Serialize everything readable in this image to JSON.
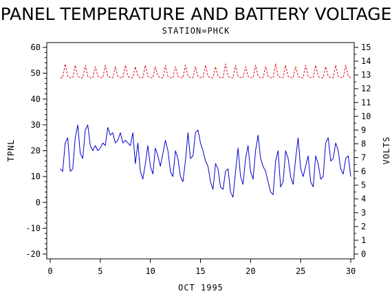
{
  "chart_data": {
    "type": "line",
    "title": "PANEL TEMPERATURE AND BATTERY VOLTAGE",
    "subtitle": "STATION=PHCK",
    "xlabel": "OCT 1995",
    "ylabel": "TPNL",
    "y2label": "VOLTS",
    "xlim": [
      0,
      30
    ],
    "ylim": [
      -20,
      60
    ],
    "y2lim": [
      0,
      15
    ],
    "x_ticks": [
      0,
      5,
      10,
      15,
      20,
      25,
      30
    ],
    "y_ticks": [
      -20,
      -10,
      0,
      10,
      20,
      30,
      40,
      50,
      60
    ],
    "y2_ticks": [
      0,
      1,
      2,
      3,
      4,
      5,
      6,
      7,
      8,
      9,
      10,
      11,
      12,
      13,
      14,
      15
    ],
    "grid": false,
    "legend": "none",
    "series": [
      {
        "axis": "left",
        "style": "solid",
        "color": "#0000cc",
        "points": [
          [
            1.0,
            13
          ],
          [
            1.25,
            12
          ],
          [
            1.5,
            23
          ],
          [
            1.75,
            25
          ],
          [
            2.0,
            12
          ],
          [
            2.25,
            13
          ],
          [
            2.5,
            25
          ],
          [
            2.75,
            30
          ],
          [
            3.0,
            19
          ],
          [
            3.25,
            17
          ],
          [
            3.5,
            28
          ],
          [
            3.75,
            30
          ],
          [
            4.0,
            22
          ],
          [
            4.25,
            20
          ],
          [
            4.5,
            22
          ],
          [
            4.75,
            20
          ],
          [
            5.0,
            21
          ],
          [
            5.25,
            23
          ],
          [
            5.5,
            22
          ],
          [
            5.75,
            29
          ],
          [
            6.0,
            26
          ],
          [
            6.25,
            27
          ],
          [
            6.5,
            23
          ],
          [
            6.75,
            24
          ],
          [
            7.0,
            27
          ],
          [
            7.25,
            23
          ],
          [
            7.5,
            24
          ],
          [
            7.75,
            23
          ],
          [
            8.0,
            22
          ],
          [
            8.25,
            27
          ],
          [
            8.5,
            15
          ],
          [
            8.75,
            23
          ],
          [
            9.0,
            12
          ],
          [
            9.25,
            9
          ],
          [
            9.5,
            15
          ],
          [
            9.75,
            22
          ],
          [
            10.0,
            14
          ],
          [
            10.25,
            11
          ],
          [
            10.5,
            21
          ],
          [
            10.75,
            18
          ],
          [
            11.0,
            14
          ],
          [
            11.25,
            19
          ],
          [
            11.5,
            24
          ],
          [
            11.75,
            20
          ],
          [
            12.0,
            12
          ],
          [
            12.25,
            10
          ],
          [
            12.5,
            20
          ],
          [
            12.75,
            17
          ],
          [
            13.0,
            10
          ],
          [
            13.25,
            8
          ],
          [
            13.5,
            16
          ],
          [
            13.75,
            27
          ],
          [
            14.0,
            17
          ],
          [
            14.25,
            18
          ],
          [
            14.5,
            27
          ],
          [
            14.75,
            28
          ],
          [
            15.0,
            23
          ],
          [
            15.25,
            20
          ],
          [
            15.5,
            16
          ],
          [
            15.75,
            14
          ],
          [
            16.0,
            8
          ],
          [
            16.25,
            5
          ],
          [
            16.5,
            15
          ],
          [
            16.75,
            13
          ],
          [
            17.0,
            6
          ],
          [
            17.25,
            5
          ],
          [
            17.5,
            12
          ],
          [
            17.75,
            13
          ],
          [
            18.0,
            4
          ],
          [
            18.25,
            2
          ],
          [
            18.5,
            12
          ],
          [
            18.75,
            21
          ],
          [
            19.0,
            10
          ],
          [
            19.25,
            7
          ],
          [
            19.5,
            17
          ],
          [
            19.75,
            22
          ],
          [
            20.0,
            12
          ],
          [
            20.25,
            9
          ],
          [
            20.5,
            20
          ],
          [
            20.75,
            26
          ],
          [
            21.0,
            17
          ],
          [
            21.25,
            14
          ],
          [
            21.5,
            12
          ],
          [
            21.75,
            8
          ],
          [
            22.0,
            4
          ],
          [
            22.25,
            3
          ],
          [
            22.5,
            16
          ],
          [
            22.75,
            20
          ],
          [
            23.0,
            6
          ],
          [
            23.25,
            8
          ],
          [
            23.5,
            20
          ],
          [
            23.75,
            17
          ],
          [
            24.0,
            10
          ],
          [
            24.25,
            7
          ],
          [
            24.5,
            17
          ],
          [
            24.75,
            25
          ],
          [
            25.0,
            13
          ],
          [
            25.25,
            10
          ],
          [
            25.5,
            14
          ],
          [
            25.75,
            18
          ],
          [
            26.0,
            8
          ],
          [
            26.25,
            6
          ],
          [
            26.5,
            18
          ],
          [
            26.75,
            15
          ],
          [
            27.0,
            9
          ],
          [
            27.25,
            10
          ],
          [
            27.5,
            23
          ],
          [
            27.75,
            25
          ],
          [
            28.0,
            16
          ],
          [
            28.25,
            17
          ],
          [
            28.5,
            23
          ],
          [
            28.75,
            20
          ],
          [
            29.0,
            13
          ],
          [
            29.25,
            11
          ],
          [
            29.5,
            17
          ],
          [
            29.75,
            18
          ],
          [
            30.0,
            10
          ]
        ]
      },
      {
        "axis": "right",
        "style": "dashed",
        "color": "#dd0000",
        "points": [
          [
            1.0,
            12.8
          ],
          [
            1.25,
            12.8
          ],
          [
            1.5,
            13.8
          ],
          [
            1.75,
            12.9
          ],
          [
            2.0,
            12.8
          ],
          [
            2.25,
            12.8
          ],
          [
            2.5,
            13.7
          ],
          [
            2.75,
            12.9
          ],
          [
            3.0,
            12.8
          ],
          [
            3.25,
            12.8
          ],
          [
            3.5,
            13.7
          ],
          [
            3.75,
            12.9
          ],
          [
            4.0,
            12.8
          ],
          [
            4.25,
            12.8
          ],
          [
            4.5,
            13.6
          ],
          [
            4.75,
            12.9
          ],
          [
            5.0,
            12.8
          ],
          [
            5.25,
            12.8
          ],
          [
            5.5,
            13.7
          ],
          [
            5.75,
            12.9
          ],
          [
            6.0,
            12.8
          ],
          [
            6.25,
            12.8
          ],
          [
            6.5,
            13.6
          ],
          [
            6.75,
            12.9
          ],
          [
            7.0,
            12.8
          ],
          [
            7.25,
            12.8
          ],
          [
            7.5,
            13.7
          ],
          [
            7.75,
            12.9
          ],
          [
            8.0,
            12.8
          ],
          [
            8.25,
            12.8
          ],
          [
            8.5,
            13.6
          ],
          [
            8.75,
            12.9
          ],
          [
            9.0,
            12.8
          ],
          [
            9.25,
            12.8
          ],
          [
            9.5,
            13.7
          ],
          [
            9.75,
            12.9
          ],
          [
            10.0,
            12.8
          ],
          [
            10.25,
            12.8
          ],
          [
            10.5,
            13.6
          ],
          [
            10.75,
            12.9
          ],
          [
            11.0,
            12.8
          ],
          [
            11.25,
            12.8
          ],
          [
            11.5,
            13.7
          ],
          [
            11.75,
            12.9
          ],
          [
            12.0,
            12.8
          ],
          [
            12.25,
            12.8
          ],
          [
            12.5,
            13.6
          ],
          [
            12.75,
            12.9
          ],
          [
            13.0,
            12.8
          ],
          [
            13.25,
            12.8
          ],
          [
            13.5,
            13.7
          ],
          [
            13.75,
            12.9
          ],
          [
            14.0,
            12.8
          ],
          [
            14.25,
            12.8
          ],
          [
            14.5,
            13.6
          ],
          [
            14.75,
            12.9
          ],
          [
            15.0,
            12.8
          ],
          [
            15.25,
            12.8
          ],
          [
            15.5,
            13.7
          ],
          [
            15.75,
            12.9
          ],
          [
            16.0,
            12.8
          ],
          [
            16.25,
            12.8
          ],
          [
            16.5,
            13.6
          ],
          [
            16.75,
            12.9
          ],
          [
            17.0,
            12.8
          ],
          [
            17.25,
            12.8
          ],
          [
            17.5,
            13.8
          ],
          [
            17.75,
            12.9
          ],
          [
            18.0,
            12.8
          ],
          [
            18.25,
            12.8
          ],
          [
            18.5,
            13.7
          ],
          [
            18.75,
            12.9
          ],
          [
            19.0,
            12.8
          ],
          [
            19.25,
            12.8
          ],
          [
            19.5,
            13.6
          ],
          [
            19.75,
            12.9
          ],
          [
            20.0,
            12.8
          ],
          [
            20.25,
            12.8
          ],
          [
            20.5,
            13.7
          ],
          [
            20.75,
            12.9
          ],
          [
            21.0,
            12.8
          ],
          [
            21.25,
            12.8
          ],
          [
            21.5,
            13.6
          ],
          [
            21.75,
            12.9
          ],
          [
            22.0,
            12.8
          ],
          [
            22.25,
            12.8
          ],
          [
            22.5,
            13.8
          ],
          [
            22.75,
            12.9
          ],
          [
            23.0,
            12.8
          ],
          [
            23.25,
            12.8
          ],
          [
            23.5,
            13.7
          ],
          [
            23.75,
            12.9
          ],
          [
            24.0,
            12.8
          ],
          [
            24.25,
            12.8
          ],
          [
            24.5,
            13.6
          ],
          [
            24.75,
            12.9
          ],
          [
            25.0,
            12.8
          ],
          [
            25.25,
            12.8
          ],
          [
            25.5,
            13.7
          ],
          [
            25.75,
            12.9
          ],
          [
            26.0,
            12.8
          ],
          [
            26.25,
            12.8
          ],
          [
            26.5,
            13.7
          ],
          [
            26.75,
            12.9
          ],
          [
            27.0,
            12.8
          ],
          [
            27.25,
            12.8
          ],
          [
            27.5,
            13.6
          ],
          [
            27.75,
            12.9
          ],
          [
            28.0,
            12.8
          ],
          [
            28.25,
            12.8
          ],
          [
            28.5,
            13.7
          ],
          [
            28.75,
            12.9
          ],
          [
            29.0,
            12.8
          ],
          [
            29.25,
            12.8
          ],
          [
            29.5,
            13.7
          ],
          [
            29.75,
            12.9
          ],
          [
            30.0,
            12.8
          ]
        ]
      }
    ]
  }
}
